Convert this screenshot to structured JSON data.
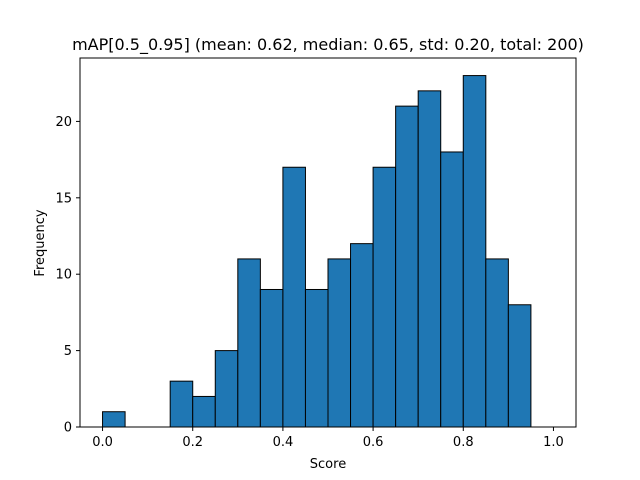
{
  "chart_data": {
    "type": "bar",
    "title": "mAP[0.5_0.95] (mean: 0.62, median: 0.65, std: 0.20, total: 200)",
    "xlabel": "Score",
    "ylabel": "Frequency",
    "bin_width": 0.05,
    "bins": [
      0.0,
      0.05,
      0.1,
      0.15,
      0.2,
      0.25,
      0.3,
      0.35,
      0.4,
      0.45,
      0.5,
      0.55,
      0.6,
      0.65,
      0.7,
      0.75,
      0.8,
      0.85,
      0.9,
      0.95
    ],
    "values": [
      1,
      0,
      0,
      3,
      2,
      5,
      11,
      9,
      17,
      9,
      11,
      12,
      17,
      21,
      22,
      18,
      23,
      11,
      8,
      0
    ],
    "xlim": [
      -0.05,
      1.05
    ],
    "ylim": [
      0,
      24.15
    ],
    "xticks": [
      0.0,
      0.2,
      0.4,
      0.6,
      0.8,
      1.0
    ],
    "xtick_labels": [
      "0.0",
      "0.2",
      "0.4",
      "0.6",
      "0.8",
      "1.0"
    ],
    "yticks": [
      0,
      5,
      10,
      15,
      20
    ],
    "ytick_labels": [
      "0",
      "5",
      "10",
      "15",
      "20"
    ],
    "grid": false,
    "colors": {
      "bar_fill": "#1f77b4",
      "bar_edge": "#000000"
    }
  }
}
